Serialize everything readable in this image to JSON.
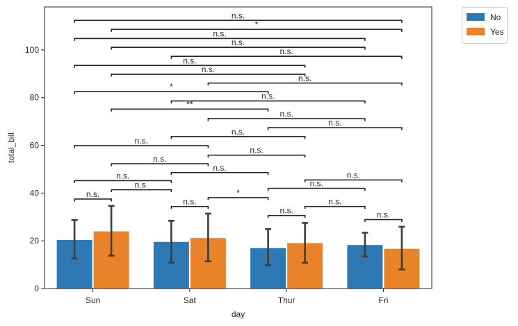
{
  "chart_data": {
    "type": "bar",
    "xlabel": "day",
    "ylabel": "total_bill",
    "ylim": [
      0,
      118
    ],
    "yticks": [
      0,
      20,
      40,
      60,
      80,
      100
    ],
    "grid": false,
    "legend_placement": "outside-upper-right",
    "categories": [
      "Sun",
      "Sat",
      "Thur",
      "Fri"
    ],
    "series": [
      {
        "name": "No",
        "color": "#2e78b4",
        "values": [
          20.5,
          19.7,
          17.1,
          18.4
        ],
        "err_low": [
          12.6,
          10.8,
          9.8,
          13.4
        ],
        "err_high": [
          28.7,
          28.4,
          24.9,
          23.4
        ]
      },
      {
        "name": "Yes",
        "color": "#e9832a",
        "values": [
          24.1,
          21.3,
          19.2,
          16.8
        ],
        "err_low": [
          13.8,
          11.4,
          10.8,
          8.0
        ],
        "err_high": [
          34.6,
          31.4,
          27.5,
          25.9
        ]
      }
    ],
    "annotations": [
      {
        "from": [
          0,
          0
        ],
        "to": [
          0,
          1
        ],
        "y": 37.5,
        "label": "n.s."
      },
      {
        "from": [
          0,
          1
        ],
        "to": [
          1,
          0
        ],
        "y": 41.4,
        "label": "n.s."
      },
      {
        "from": [
          1,
          0
        ],
        "to": [
          1,
          1
        ],
        "y": 34.4,
        "label": "n.s."
      },
      {
        "from": [
          1,
          1
        ],
        "to": [
          2,
          0
        ],
        "y": 38.1,
        "label": "*"
      },
      {
        "from": [
          2,
          0
        ],
        "to": [
          2,
          1
        ],
        "y": 30.6,
        "label": "n.s."
      },
      {
        "from": [
          2,
          1
        ],
        "to": [
          3,
          0
        ],
        "y": 34.4,
        "label": "n.s."
      },
      {
        "from": [
          3,
          0
        ],
        "to": [
          3,
          1
        ],
        "y": 28.9,
        "label": "n.s."
      },
      {
        "from": [
          0,
          0
        ],
        "to": [
          1,
          0
        ],
        "y": 45.2,
        "label": "n.s."
      },
      {
        "from": [
          1,
          0
        ],
        "to": [
          2,
          0
        ],
        "y": 48.6,
        "label": "n.s."
      },
      {
        "from": [
          2,
          0
        ],
        "to": [
          3,
          0
        ],
        "y": 42.0,
        "label": "n.s."
      },
      {
        "from": [
          0,
          1
        ],
        "to": [
          1,
          1
        ],
        "y": 52.3,
        "label": "n.s."
      },
      {
        "from": [
          1,
          1
        ],
        "to": [
          2,
          1
        ],
        "y": 55.9,
        "label": "n.s."
      },
      {
        "from": [
          2,
          1
        ],
        "to": [
          3,
          1
        ],
        "y": 45.5,
        "label": "n.s."
      },
      {
        "from": [
          0,
          0
        ],
        "to": [
          1,
          1
        ],
        "y": 59.9,
        "label": "n.s."
      },
      {
        "from": [
          1,
          0
        ],
        "to": [
          2,
          1
        ],
        "y": 63.7,
        "label": "n.s."
      },
      {
        "from": [
          2,
          0
        ],
        "to": [
          3,
          1
        ],
        "y": 67.4,
        "label": "n.s."
      },
      {
        "from": [
          1,
          1
        ],
        "to": [
          3,
          0
        ],
        "y": 71.2,
        "label": "n.s."
      },
      {
        "from": [
          0,
          1
        ],
        "to": [
          2,
          0
        ],
        "y": 75.2,
        "label": "**"
      },
      {
        "from": [
          1,
          0
        ],
        "to": [
          3,
          0
        ],
        "y": 78.6,
        "label": "n.s."
      },
      {
        "from": [
          0,
          0
        ],
        "to": [
          2,
          0
        ],
        "y": 82.5,
        "label": "*"
      },
      {
        "from": [
          1,
          1
        ],
        "to": [
          3,
          1
        ],
        "y": 86.1,
        "label": "n.s."
      },
      {
        "from": [
          0,
          1
        ],
        "to": [
          2,
          1
        ],
        "y": 89.8,
        "label": "n.s."
      },
      {
        "from": [
          0,
          0
        ],
        "to": [
          2,
          1
        ],
        "y": 93.5,
        "label": "n.s."
      },
      {
        "from": [
          1,
          0
        ],
        "to": [
          3,
          1
        ],
        "y": 97.3,
        "label": "n.s."
      },
      {
        "from": [
          0,
          1
        ],
        "to": [
          3,
          0
        ],
        "y": 101.1,
        "label": "n.s."
      },
      {
        "from": [
          0,
          0
        ],
        "to": [
          3,
          0
        ],
        "y": 104.8,
        "label": "n.s."
      },
      {
        "from": [
          0,
          1
        ],
        "to": [
          3,
          1
        ],
        "y": 108.6,
        "label": "*"
      },
      {
        "from": [
          0,
          0
        ],
        "to": [
          3,
          1
        ],
        "y": 112.4,
        "label": "n.s."
      }
    ]
  }
}
